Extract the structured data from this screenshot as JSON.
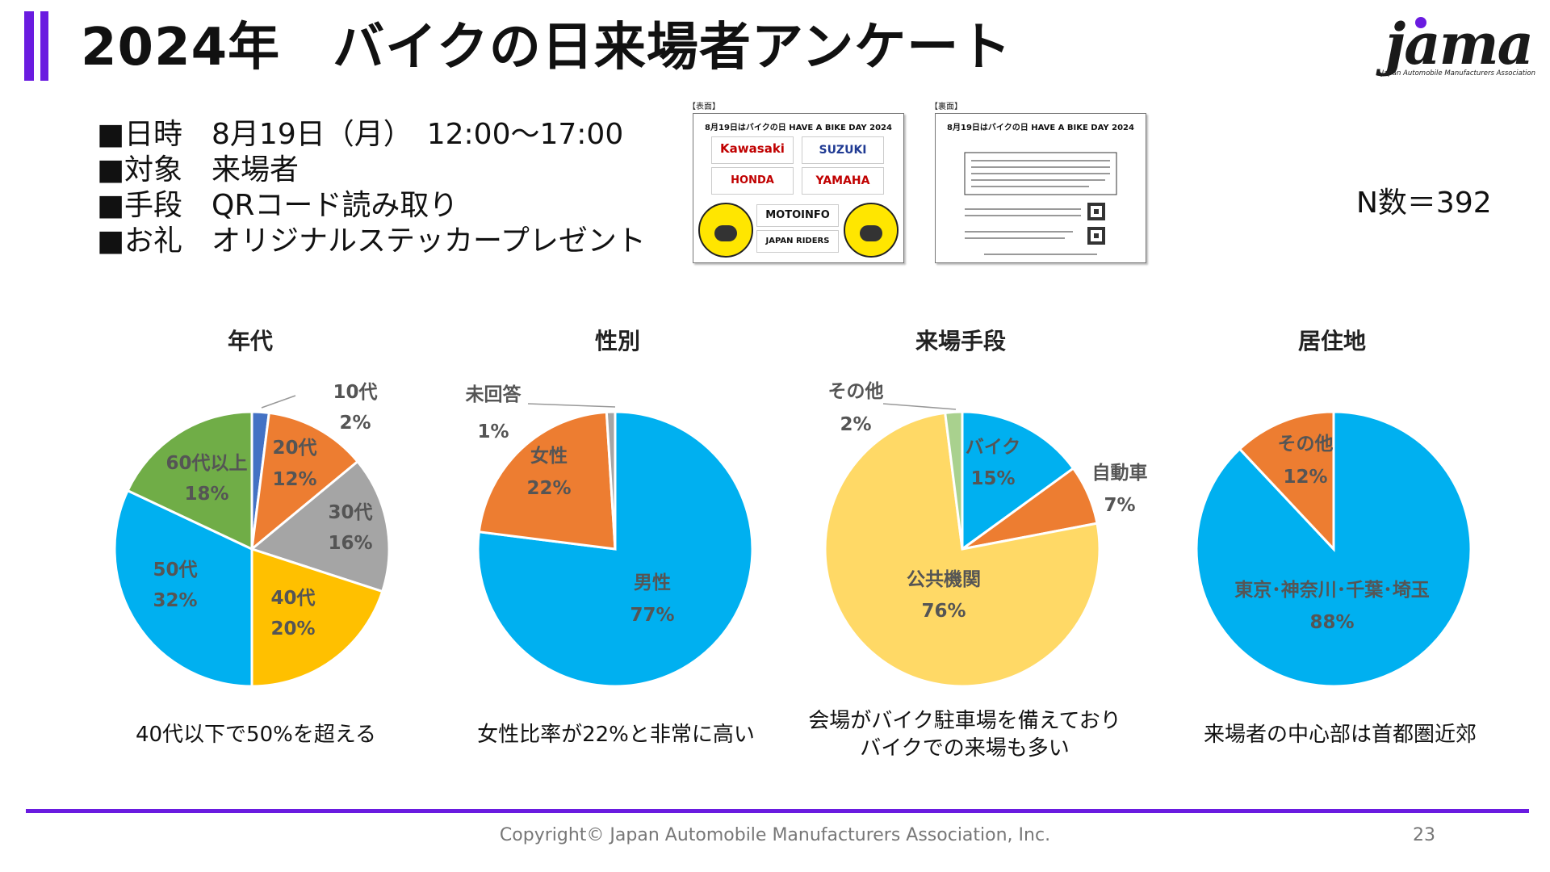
{
  "header": {
    "title": "2024年　バイクの日来場者アンケート",
    "logo_text": "jama",
    "logo_sub": "Japan Automobile Manufacturers Association"
  },
  "info": {
    "bullets": [
      "■日時　8月19日（月）　12:00～17:00",
      "■対象　来場者",
      "■手段　QRコード読み取り",
      "■お礼　オリジナルステッカープレゼント"
    ]
  },
  "cards": {
    "front": {
      "tag": "【表面】",
      "heading": "8月19日はバイクの日 HAVE A BIKE DAY 2024",
      "logos": [
        "Kawasaki",
        "SUZUKI",
        "HONDA",
        "YAMAHA",
        "MOTOINFO",
        "JAPAN RIDERS"
      ]
    },
    "back": {
      "tag": "【裏面】",
      "heading": "8月19日はバイクの日 HAVE A BIKE DAY 2024"
    }
  },
  "n_count": "N数＝392",
  "colors": {
    "accent": "#6a1be0",
    "blue": "#4472c4",
    "orange": "#ed7d31",
    "gray": "#a5a5a5",
    "gold": "#ffc000",
    "lightblue": "#00b0f0",
    "green": "#70ad47",
    "yellow": "#ffd966",
    "lightgreen": "#a9d18e"
  },
  "chart_data": [
    {
      "type": "pie",
      "title": "年代",
      "slices": [
        {
          "label": "10代",
          "value": 2,
          "display": "2%",
          "color": "#4472c4"
        },
        {
          "label": "20代",
          "value": 12,
          "display": "12%",
          "color": "#ed7d31"
        },
        {
          "label": "30代",
          "value": 16,
          "display": "16%",
          "color": "#a5a5a5"
        },
        {
          "label": "40代",
          "value": 20,
          "display": "20%",
          "color": "#ffc000"
        },
        {
          "label": "50代",
          "value": 32,
          "display": "32%",
          "color": "#00b0f0"
        },
        {
          "label": "60代以上",
          "value": 18,
          "display": "18%",
          "color": "#70ad47"
        }
      ]
    },
    {
      "type": "pie",
      "title": "性別",
      "slices": [
        {
          "label": "男性",
          "value": 77,
          "display": "77%",
          "color": "#00b0f0"
        },
        {
          "label": "女性",
          "value": 22,
          "display": "22%",
          "color": "#ed7d31"
        },
        {
          "label": "未回答",
          "value": 1,
          "display": "1%",
          "color": "#a5a5a5"
        }
      ]
    },
    {
      "type": "pie",
      "title": "来場手段",
      "slices": [
        {
          "label": "バイク",
          "value": 15,
          "display": "15%",
          "color": "#00b0f0"
        },
        {
          "label": "自動車",
          "value": 7,
          "display": "7%",
          "color": "#ed7d31"
        },
        {
          "label": "公共機関",
          "value": 76,
          "display": "76%",
          "color": "#ffd966"
        },
        {
          "label": "その他",
          "value": 2,
          "display": "2%",
          "color": "#a9d18e"
        }
      ]
    },
    {
      "type": "pie",
      "title": "居住地",
      "slices": [
        {
          "label": "東京･神奈川･千葉･埼玉",
          "value": 88,
          "display": "88%",
          "color": "#00b0f0"
        },
        {
          "label": "その他",
          "value": 12,
          "display": "12%",
          "color": "#ed7d31"
        }
      ]
    }
  ],
  "comments": [
    "40代以下で50%を超える",
    "女性比率が22%と非常に高い",
    "会場がバイク駐車場を備えており\nバイクでの来場も多い",
    "来場者の中心部は首都圏近郊"
  ],
  "footer": {
    "copyright": "Copyright© Japan Automobile Manufacturers Association, Inc.",
    "page": "23"
  }
}
